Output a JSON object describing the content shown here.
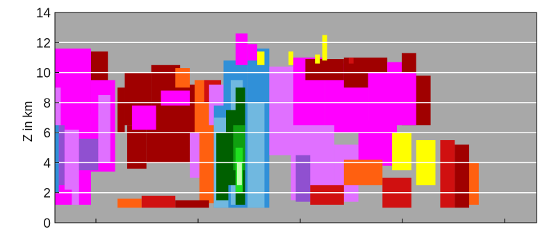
{
  "chart_data": {
    "type": "heatmap",
    "title": "",
    "xlabel": "",
    "ylabel": "Z in km",
    "ylim": [
      0,
      14
    ],
    "yticks": [
      "0",
      "2",
      "4",
      "6",
      "8",
      "10",
      "12",
      "14"
    ],
    "xticks": [
      "",
      "",
      "",
      "",
      ""
    ],
    "grid": "horizontal",
    "colors": {
      "background": "#a8a8a8",
      "gridline": "#ffffff",
      "axis": "#000000"
    },
    "palette": {
      "dark_red": "#a00000",
      "red": "#d01010",
      "orange": "#ff6010",
      "yellow": "#ffff00",
      "magenta": "#ff00ff",
      "light_magenta": "#e070ff",
      "purple": "#9050d0",
      "blue": "#3090d8",
      "light_blue": "#70b8e0",
      "dark_green": "#006000",
      "green": "#10a010",
      "bright_green": "#20e020",
      "pale_green": "#c0ffb0"
    },
    "cells": [
      {
        "x": [
          0.0,
          0.75
        ],
        "y": [
          1.2,
          11.6
        ],
        "c": "magenta"
      },
      {
        "x": [
          0.75,
          1.1
        ],
        "y": [
          7.2,
          11.4
        ],
        "c": "dark_red"
      },
      {
        "x": [
          0.75,
          1.25
        ],
        "y": [
          3.4,
          9.5
        ],
        "c": "magenta"
      },
      {
        "x": [
          0.0,
          0.12
        ],
        "y": [
          3.0,
          9.0
        ],
        "c": "light_magenta"
      },
      {
        "x": [
          0.0,
          0.08
        ],
        "y": [
          2.0,
          6.5
        ],
        "c": "blue"
      },
      {
        "x": [
          0.08,
          0.2
        ],
        "y": [
          2.5,
          6.5
        ],
        "c": "purple"
      },
      {
        "x": [
          0.2,
          0.5
        ],
        "y": [
          2.2,
          6.2
        ],
        "c": "light_magenta"
      },
      {
        "x": [
          0.35,
          0.5
        ],
        "y": [
          1.2,
          2.5
        ],
        "c": "light_magenta"
      },
      {
        "x": [
          0.5,
          0.9
        ],
        "y": [
          3.5,
          5.6
        ],
        "c": "purple"
      },
      {
        "x": [
          0.9,
          1.15
        ],
        "y": [
          4.0,
          8.5
        ],
        "c": "light_magenta"
      },
      {
        "x": [
          1.3,
          1.45
        ],
        "y": [
          6.0,
          9.0
        ],
        "c": "dark_red"
      },
      {
        "x": [
          1.45,
          2.0
        ],
        "y": [
          6.5,
          10.0
        ],
        "c": "dark_red"
      },
      {
        "x": [
          2.0,
          2.6
        ],
        "y": [
          7.5,
          10.5
        ],
        "c": "dark_red"
      },
      {
        "x": [
          1.5,
          1.9
        ],
        "y": [
          3.6,
          6.5
        ],
        "c": "dark_red"
      },
      {
        "x": [
          1.9,
          2.8
        ],
        "y": [
          4.0,
          6.8
        ],
        "c": "dark_red"
      },
      {
        "x": [
          1.6,
          2.1
        ],
        "y": [
          6.2,
          7.8
        ],
        "c": "magenta"
      },
      {
        "x": [
          2.1,
          3.1
        ],
        "y": [
          6.0,
          9.2
        ],
        "c": "dark_red"
      },
      {
        "x": [
          2.2,
          2.8
        ],
        "y": [
          7.8,
          8.8
        ],
        "c": "magenta"
      },
      {
        "x": [
          2.5,
          2.8
        ],
        "y": [
          9.0,
          10.3
        ],
        "c": "orange"
      },
      {
        "x": [
          2.8,
          3.1
        ],
        "y": [
          3.0,
          6.0
        ],
        "c": "light_magenta"
      },
      {
        "x": [
          2.9,
          3.2
        ],
        "y": [
          6.0,
          9.5
        ],
        "c": "orange"
      },
      {
        "x": [
          3.1,
          3.45
        ],
        "y": [
          8.0,
          9.5
        ],
        "c": "red"
      },
      {
        "x": [
          3.2,
          3.6
        ],
        "y": [
          2.5,
          9.2
        ],
        "c": "light_magenta"
      },
      {
        "x": [
          3.6,
          3.95
        ],
        "y": [
          2.5,
          10.5
        ],
        "c": "magenta"
      },
      {
        "x": [
          3.0,
          3.3
        ],
        "y": [
          1.3,
          6.5
        ],
        "c": "orange"
      },
      {
        "x": [
          3.3,
          4.0
        ],
        "y": [
          1.0,
          7.8
        ],
        "c": "blue"
      },
      {
        "x": [
          3.5,
          4.0
        ],
        "y": [
          7.5,
          10.8
        ],
        "c": "blue"
      },
      {
        "x": [
          4.0,
          4.45
        ],
        "y": [
          1.0,
          11.6
        ],
        "c": "blue"
      },
      {
        "x": [
          4.0,
          4.2
        ],
        "y": [
          10.8,
          11.9
        ],
        "c": "magenta"
      },
      {
        "x": [
          4.45,
          4.95
        ],
        "y": [
          4.5,
          10.4
        ],
        "c": "light_magenta"
      },
      {
        "x": [
          4.95,
          5.6
        ],
        "y": [
          5.6,
          11.0
        ],
        "c": "magenta"
      },
      {
        "x": [
          5.6,
          6.5
        ],
        "y": [
          6.0,
          10.6
        ],
        "c": "magenta"
      },
      {
        "x": [
          5.2,
          6.0
        ],
        "y": [
          9.5,
          10.9
        ],
        "c": "dark_red"
      },
      {
        "x": [
          6.0,
          6.9
        ],
        "y": [
          9.0,
          11.0
        ],
        "c": "dark_red"
      },
      {
        "x": [
          6.9,
          7.2
        ],
        "y": [
          8.0,
          10.7
        ],
        "c": "magenta"
      },
      {
        "x": [
          7.2,
          7.5
        ],
        "y": [
          9.8,
          11.3
        ],
        "c": "dark_red"
      },
      {
        "x": [
          7.2,
          7.8
        ],
        "y": [
          6.5,
          9.8
        ],
        "c": "dark_red"
      },
      {
        "x": [
          6.5,
          7.5
        ],
        "y": [
          6.5,
          10.0
        ],
        "c": "magenta"
      },
      {
        "x": [
          6.3,
          7.1
        ],
        "y": [
          3.8,
          6.8
        ],
        "c": "magenta"
      },
      {
        "x": [
          4.9,
          5.8
        ],
        "y": [
          1.5,
          6.5
        ],
        "c": "light_magenta"
      },
      {
        "x": [
          5.8,
          6.3
        ],
        "y": [
          1.4,
          5.2
        ],
        "c": "light_magenta"
      },
      {
        "x": [
          5.0,
          5.3
        ],
        "y": [
          1.4,
          4.5
        ],
        "c": "purple"
      },
      {
        "x": [
          5.3,
          6.0
        ],
        "y": [
          1.2,
          2.5
        ],
        "c": "red"
      },
      {
        "x": [
          6.0,
          6.8
        ],
        "y": [
          2.5,
          4.2
        ],
        "c": "orange"
      },
      {
        "x": [
          6.8,
          7.4
        ],
        "y": [
          1.0,
          3.0
        ],
        "c": "red"
      },
      {
        "x": [
          7.5,
          7.9
        ],
        "y": [
          2.5,
          5.5
        ],
        "c": "yellow"
      },
      {
        "x": [
          7.0,
          7.4
        ],
        "y": [
          3.5,
          6.0
        ],
        "c": "yellow"
      },
      {
        "x": [
          8.0,
          8.3
        ],
        "y": [
          1.0,
          5.5
        ],
        "c": "red"
      },
      {
        "x": [
          8.3,
          8.6
        ],
        "y": [
          1.0,
          5.2
        ],
        "c": "dark_red"
      },
      {
        "x": [
          8.6,
          8.8
        ],
        "y": [
          1.2,
          4.0
        ],
        "c": "orange"
      },
      {
        "x": [
          1.3,
          1.8
        ],
        "y": [
          1.0,
          1.6
        ],
        "c": "orange"
      },
      {
        "x": [
          1.8,
          2.5
        ],
        "y": [
          1.0,
          1.8
        ],
        "c": "red"
      },
      {
        "x": [
          2.5,
          3.2
        ],
        "y": [
          1.0,
          1.5
        ],
        "c": "dark_red"
      },
      {
        "x": [
          3.75,
          4.0
        ],
        "y": [
          10.5,
          12.6
        ],
        "c": "magenta"
      },
      {
        "x": [
          4.2,
          4.35
        ],
        "y": [
          10.5,
          11.4
        ],
        "c": "yellow"
      },
      {
        "x": [
          4.85,
          4.95
        ],
        "y": [
          10.5,
          11.4
        ],
        "c": "yellow"
      },
      {
        "x": [
          5.4,
          5.5
        ],
        "y": [
          10.6,
          11.2
        ],
        "c": "yellow"
      },
      {
        "x": [
          5.55,
          5.65
        ],
        "y": [
          10.8,
          12.5
        ],
        "c": "yellow"
      },
      {
        "x": [
          6.1,
          6.2
        ],
        "y": [
          10.6,
          11.0
        ],
        "c": "red"
      },
      {
        "x": [
          3.3,
          3.6
        ],
        "y": [
          1.0,
          7.0
        ],
        "c": "light_blue"
      },
      {
        "x": [
          3.65,
          3.9
        ],
        "y": [
          1.2,
          9.5
        ],
        "c": "light_blue"
      },
      {
        "x": [
          3.35,
          3.6
        ],
        "y": [
          1.5,
          6.0
        ],
        "c": "dark_green"
      },
      {
        "x": [
          3.55,
          3.8
        ],
        "y": [
          2.5,
          7.5
        ],
        "c": "dark_green"
      },
      {
        "x": [
          3.75,
          3.95
        ],
        "y": [
          1.2,
          9.0
        ],
        "c": "dark_green"
      },
      {
        "x": [
          3.7,
          3.95
        ],
        "y": [
          3.5,
          6.5
        ],
        "c": "green"
      },
      {
        "x": [
          3.75,
          3.9
        ],
        "y": [
          2.0,
          5.0
        ],
        "c": "bright_green"
      },
      {
        "x": [
          3.78,
          3.88
        ],
        "y": [
          2.5,
          4.0
        ],
        "c": "pale_green"
      },
      {
        "x": [
          4.0,
          4.35
        ],
        "y": [
          1.0,
          8.0
        ],
        "c": "light_blue"
      }
    ]
  }
}
